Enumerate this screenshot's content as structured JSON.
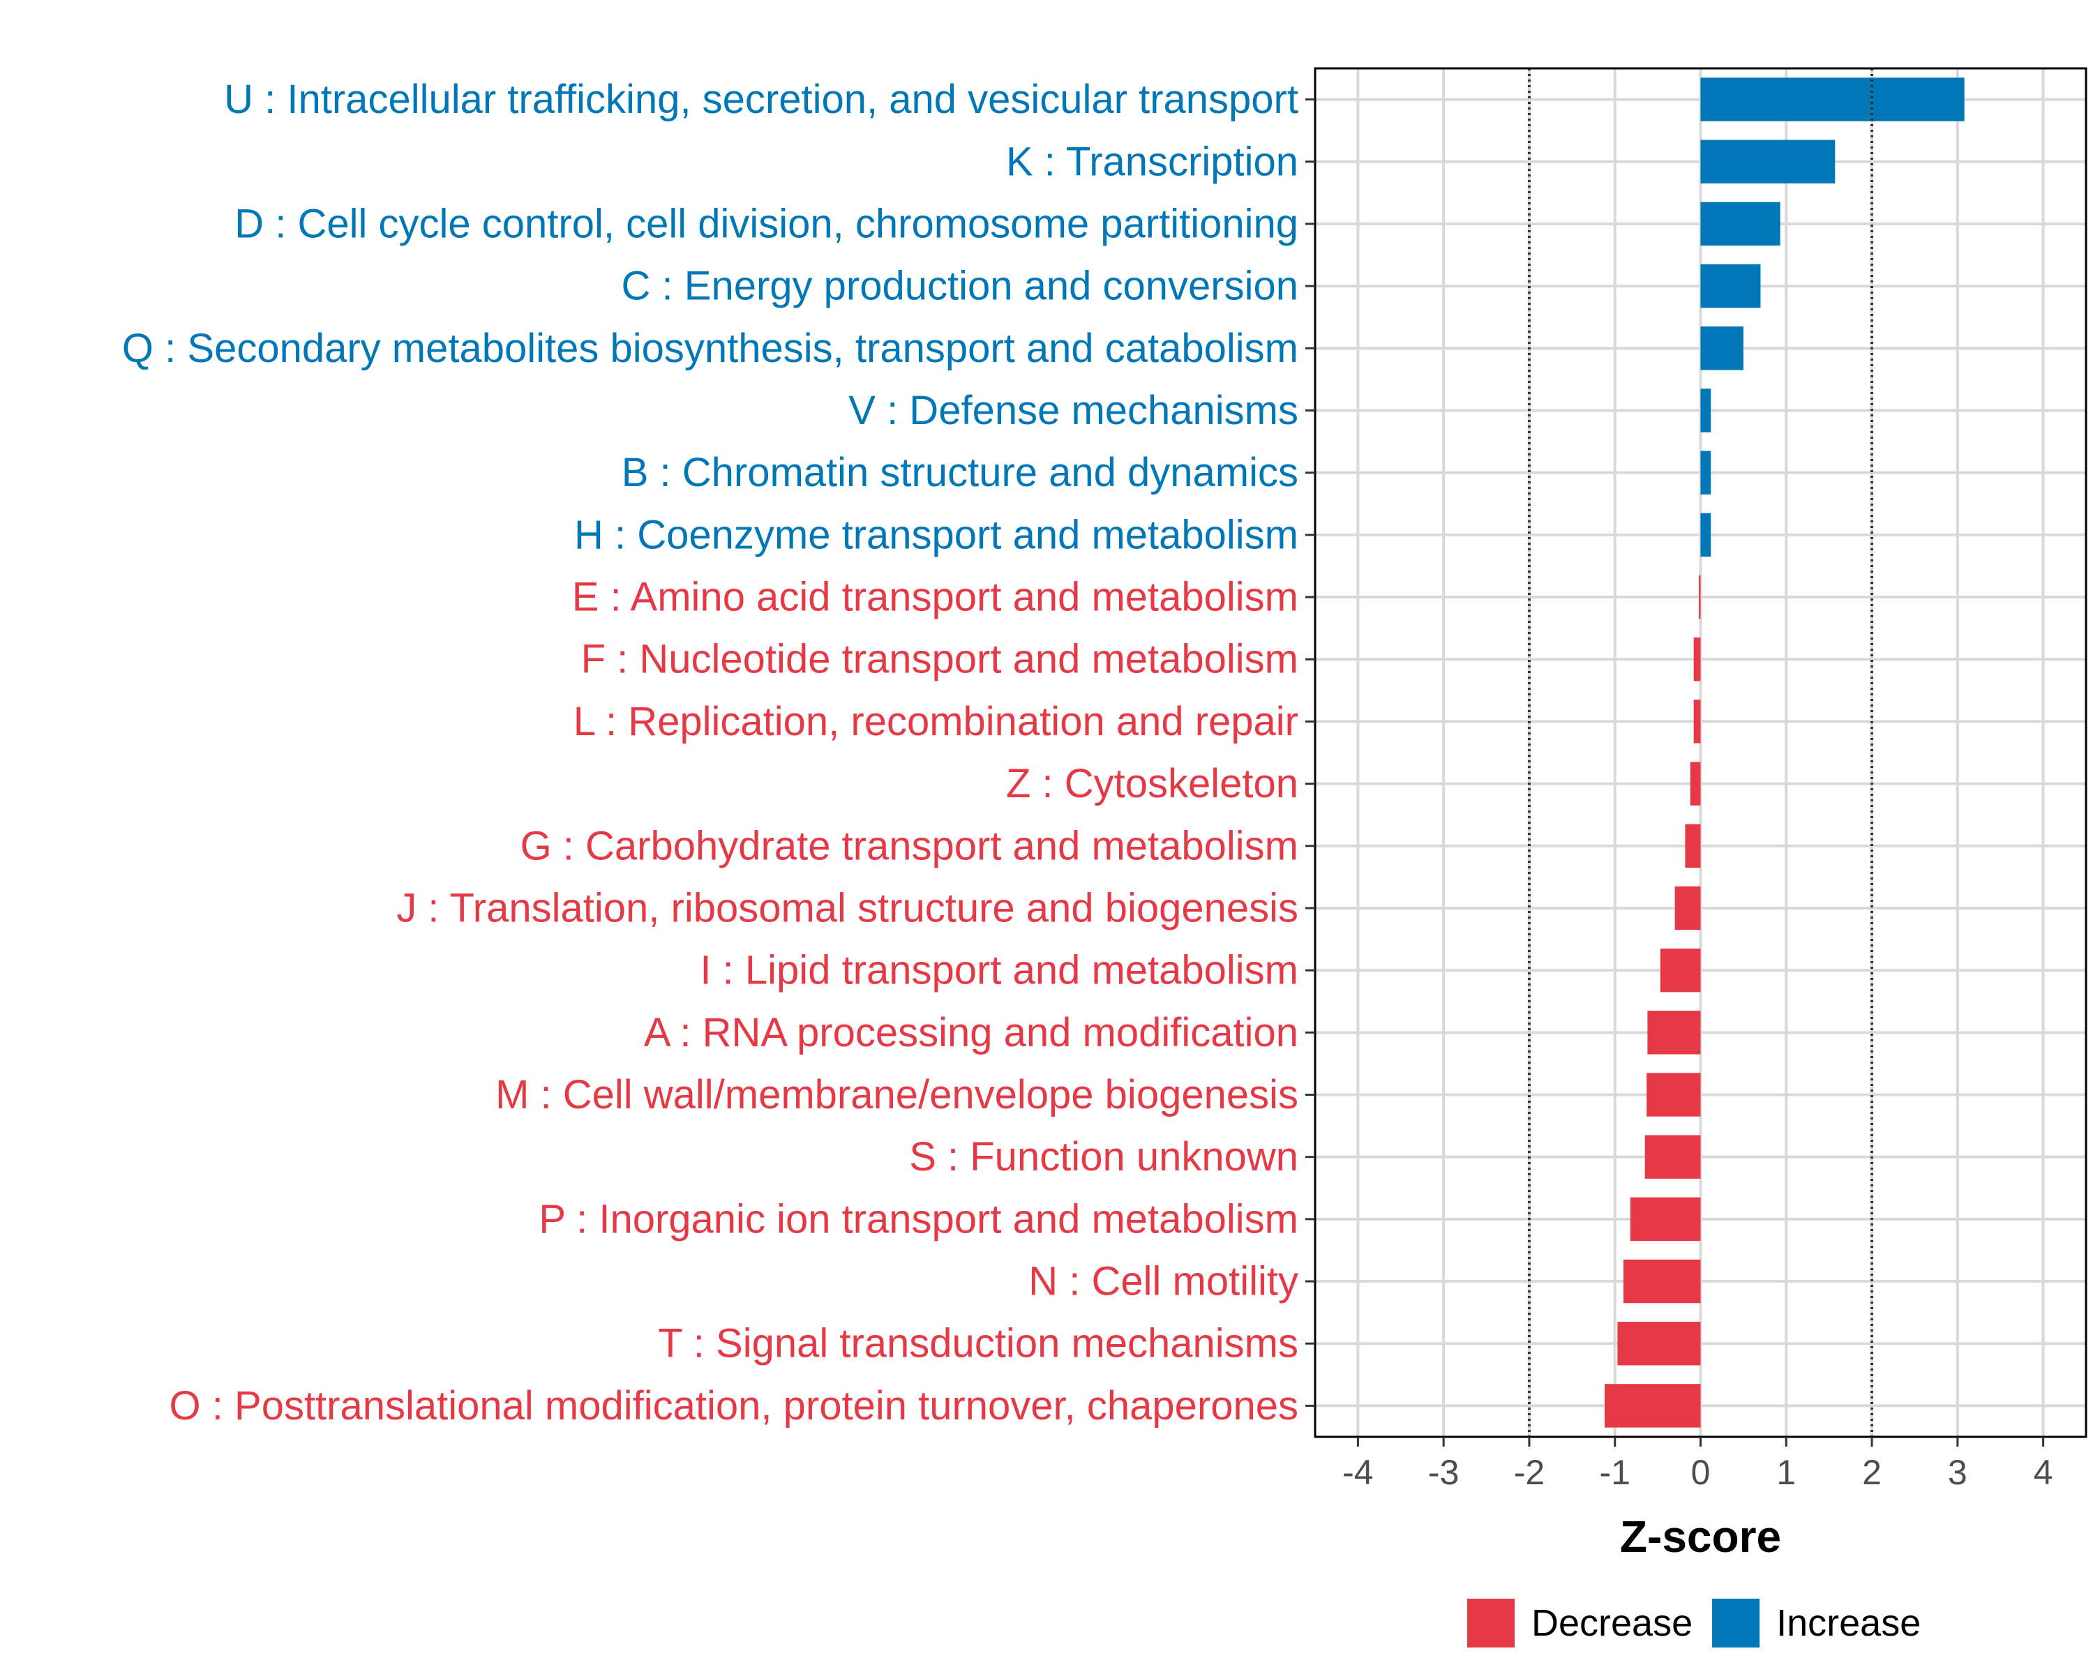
{
  "chart_data": {
    "type": "bar",
    "orientation": "horizontal",
    "title": "",
    "xlabel": "Z-score",
    "ylabel": "",
    "xlim": [
      -4.5,
      4.5
    ],
    "xticks": [
      -4,
      -3,
      -2,
      -1,
      0,
      1,
      2,
      3,
      4
    ],
    "reference_lines": [
      -2,
      2
    ],
    "grid": true,
    "legend_position": "bottom",
    "colors": {
      "Decrease": "#e63946",
      "Increase": "#0077b6"
    },
    "legend": [
      {
        "label": "Decrease",
        "color": "#e63946"
      },
      {
        "label": "Increase",
        "color": "#0077b6"
      }
    ],
    "categories": [
      "U : Intracellular trafficking, secretion, and vesicular transport",
      "K : Transcription",
      "D : Cell cycle control, cell division, chromosome partitioning",
      "C : Energy production and conversion",
      "Q : Secondary metabolites biosynthesis, transport and catabolism",
      "V : Defense mechanisms",
      "B : Chromatin structure and dynamics",
      "H : Coenzyme transport and metabolism",
      "E : Amino acid transport and metabolism",
      "F : Nucleotide transport and metabolism",
      "L : Replication, recombination and repair",
      "Z : Cytoskeleton",
      "G : Carbohydrate transport and metabolism",
      "J : Translation, ribosomal structure and biogenesis",
      "I : Lipid transport and metabolism",
      "A : RNA processing and modification",
      "M : Cell wall/membrane/envelope biogenesis",
      "S : Function unknown",
      "P : Inorganic ion transport and metabolism",
      "N : Cell motility",
      "T : Signal transduction mechanisms",
      "O : Posttranslational modification, protein turnover, chaperones"
    ],
    "values": [
      3.08,
      1.57,
      0.93,
      0.7,
      0.5,
      0.12,
      0.12,
      0.12,
      -0.02,
      -0.08,
      -0.08,
      -0.12,
      -0.18,
      -0.3,
      -0.47,
      -0.62,
      -0.63,
      -0.65,
      -0.82,
      -0.9,
      -0.97,
      -1.12
    ],
    "groups": [
      "Increase",
      "Increase",
      "Increase",
      "Increase",
      "Increase",
      "Increase",
      "Increase",
      "Increase",
      "Decrease",
      "Decrease",
      "Decrease",
      "Decrease",
      "Decrease",
      "Decrease",
      "Decrease",
      "Decrease",
      "Decrease",
      "Decrease",
      "Decrease",
      "Decrease",
      "Decrease",
      "Decrease"
    ]
  }
}
